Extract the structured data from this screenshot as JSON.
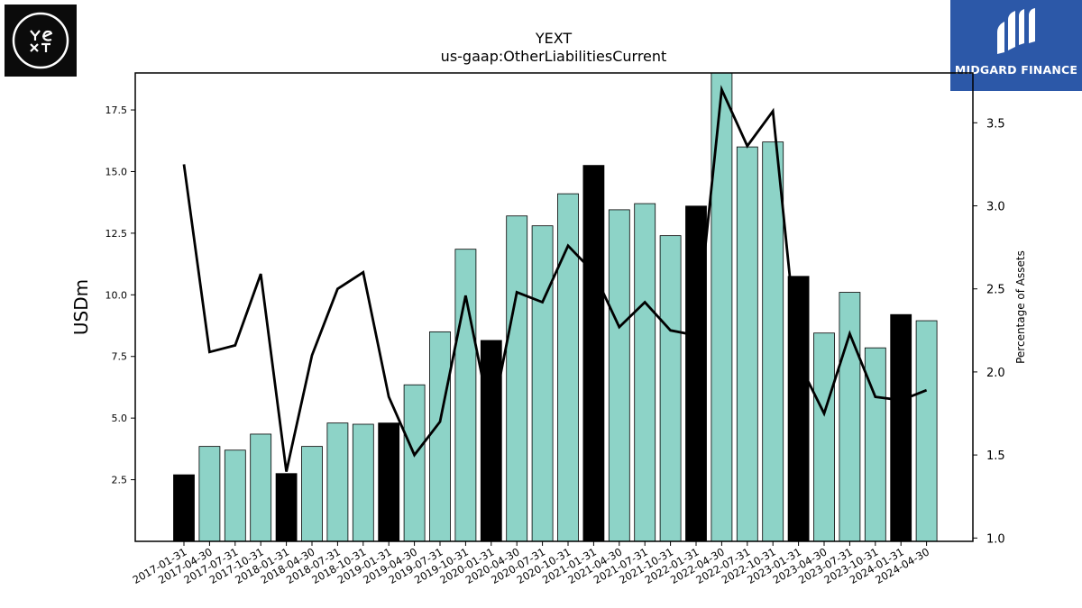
{
  "chart_data": {
    "type": "bar",
    "title": "YEXT",
    "subtitle": "us-gaap:OtherLiabilitiesCurrent",
    "ylabel": "USDm",
    "y2label": "Percentage of Assets",
    "ylim": [
      0,
      19
    ],
    "y2lim": [
      0.98,
      3.8
    ],
    "yticks": [
      2.5,
      5.0,
      7.5,
      10.0,
      12.5,
      15.0,
      17.5
    ],
    "y2ticks": [
      1.0,
      1.5,
      2.0,
      2.5,
      3.0,
      3.5
    ],
    "categories": [
      "2017-01-31",
      "2017-04-30",
      "2017-07-31",
      "2017-10-31",
      "2018-01-31",
      "2018-04-30",
      "2018-07-31",
      "2018-10-31",
      "2019-01-31",
      "2019-04-30",
      "2019-07-31",
      "2019-10-31",
      "2020-01-31",
      "2020-04-30",
      "2020-07-31",
      "2020-10-31",
      "2021-01-31",
      "2021-04-30",
      "2021-07-31",
      "2021-10-31",
      "2022-01-31",
      "2022-04-30",
      "2022-07-31",
      "2022-10-31",
      "2023-01-31",
      "2023-04-30",
      "2023-07-31",
      "2023-10-31",
      "2024-01-31",
      "2024-04-30"
    ],
    "series": [
      {
        "type": "bar",
        "axis": "left",
        "values": [
          2.7,
          3.85,
          3.7,
          4.35,
          2.75,
          3.85,
          4.8,
          4.75,
          4.8,
          6.35,
          8.5,
          11.85,
          8.15,
          13.2,
          12.8,
          14.1,
          15.25,
          13.45,
          13.7,
          12.4,
          13.6,
          19.0,
          16.0,
          16.2,
          10.75,
          8.45,
          10.1,
          7.85,
          9.2,
          8.95
        ]
      },
      {
        "type": "line",
        "axis": "right",
        "values": [
          3.25,
          2.12,
          2.16,
          2.59,
          1.4,
          2.1,
          2.5,
          2.6,
          1.85,
          1.5,
          1.7,
          2.46,
          1.7,
          2.48,
          2.42,
          2.76,
          2.6,
          2.27,
          2.42,
          2.25,
          2.22,
          3.7,
          3.36,
          3.57,
          2.06,
          1.75,
          2.23,
          1.85,
          1.83,
          1.89
        ]
      }
    ],
    "highlight_months": [
      "01"
    ],
    "colors": {
      "bar": "#8dd3c7",
      "bar_highlight": "#000000",
      "line": "#000000",
      "bar_edge": "#000000"
    },
    "grid": false
  },
  "logos": {
    "right_brand": "MIDGARD FINANCE"
  }
}
